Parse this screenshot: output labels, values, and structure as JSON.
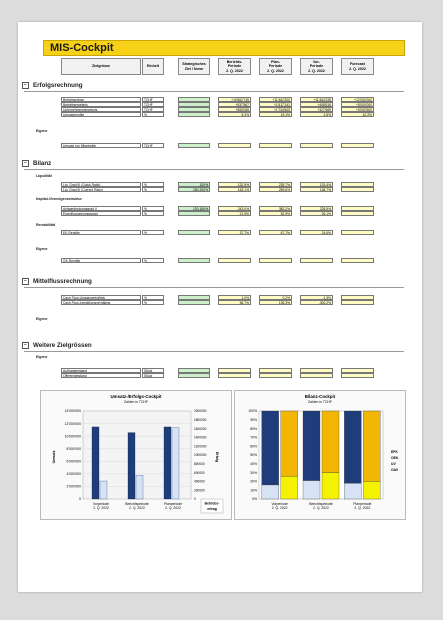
{
  "title": "MIS-Cockpit",
  "headers": {
    "kennzahl": "Zielgrösse",
    "einheit": "Einheit",
    "strategisch": [
      "Strategisches",
      "Ziel / Norm"
    ],
    "bericht": [
      "Berichts-",
      "Periode",
      "2. Q. 2022"
    ],
    "plan": [
      "Plan-",
      "Periode",
      "2. Q. 2022"
    ],
    "vor": [
      "Vor-",
      "Periode",
      "2. Q. 2022"
    ],
    "forecast": [
      "Forecast",
      "2. Q. 2022"
    ]
  },
  "sections": {
    "erfolg": "Erfolgsrechnung",
    "bilanz": "Bilanz",
    "mittel": "Mittelflussrechnung",
    "weitere": "Weitere Zielgrössen"
  },
  "subsections": {
    "eigene1": "Eigene",
    "liquiditaet": "Liquidität",
    "kapital": "Kapital-/Vermögensstruktur",
    "rentabilitaet": "Rentabilität",
    "eigene2": "Eigene",
    "eigene3": "Eigene",
    "eigene4": "Eigene"
  },
  "rows": {
    "erfolg": [
      {
        "label": "Betriebsertrag",
        "unit": "TCHF",
        "target": "",
        "bericht": "+10'562'745",
        "plan": "+11'462'200",
        "vor": "+11'464'228",
        "forecast": "+12'000'000"
      },
      {
        "label": "Betriebsergebnis",
        "unit": "TCHF",
        "target": "",
        "bericht": "+537'567",
        "plan": "+1'617'141",
        "vor": "+408'616",
        "forecast": "+5'000'000"
      },
      {
        "label": "Unternehmensergebnis",
        "unit": "TCHF",
        "target": "",
        "bericht": "+565'065",
        "plan": "+1'734'600",
        "vor": "+327'669",
        "forecast": "+5'000'500"
      },
      {
        "label": "Umsatzrendite",
        "unit": "%",
        "target": "",
        "bericht": "5.3%",
        "plan": "15.1%",
        "vor": "2.8%",
        "forecast": "42.2%"
      }
    ],
    "eigene1": [
      {
        "label": "Umsatz pro Mitarbeiter",
        "unit": "TCHF",
        "target": "",
        "bericht": "",
        "plan": "",
        "vor": "",
        "forecast": ""
      }
    ],
    "liquiditaet": [
      {
        "label": "Liq. Grad III (Quick Ratio)",
        "unit": "%",
        "target": "100%",
        "bericht": "132.9%",
        "plan": "235.7%",
        "vor": "133.4%",
        "forecast": ""
      },
      {
        "label": "Liq. Grad III (Current Ratio)",
        "unit": "%",
        "target": "150-200%",
        "bericht": "163.1%",
        "plan": "259.6%",
        "vor": "156.7%",
        "forecast": ""
      }
    ],
    "kapital": [
      {
        "label": "Anlagedeckungsgrad II",
        "unit": "%",
        "target": "120-160%",
        "bericht": "243.0%",
        "plan": "382.2%",
        "vor": "228.5%",
        "forecast": ""
      },
      {
        "label": "Eigenfinanzierungsgrad",
        "unit": "%",
        "target": "",
        "bericht": "21.9%",
        "plan": "52.9%",
        "vor": "26.1%",
        "forecast": ""
      }
    ],
    "rentabilitaet": [
      {
        "label": "EK-Rendite",
        "unit": "%",
        "target": "",
        "bericht": "37.7%",
        "plan": "67.7%",
        "vor": "24.6%",
        "forecast": ""
      }
    ],
    "eigene2": [
      {
        "label": "GK-Rendite",
        "unit": "%",
        "target": "",
        "bericht": "",
        "plan": "",
        "vor": "",
        "forecast": ""
      }
    ],
    "mittel": [
      {
        "label": "Cash Flow-Umsatzverhältnis",
        "unit": "%",
        "target": "",
        "bericht": "1.0%",
        "plan": "0.2%",
        "vor": "-1.3%",
        "forecast": ""
      },
      {
        "label": "Cash Flow-Investitionsverhältnis",
        "unit": "%",
        "target": "",
        "bericht": "56.7%",
        "plan": "135.3%",
        "vor": "-300.2%",
        "forecast": ""
      }
    ],
    "weitere": [
      {
        "label": "Auftragsbestand",
        "unit": "Stück",
        "target": "",
        "bericht": "",
        "plan": "",
        "vor": "",
        "forecast": ""
      },
      {
        "label": "Offertenbestand",
        "unit": "Stück",
        "target": "",
        "bericht": "",
        "plan": "",
        "vor": "",
        "forecast": ""
      }
    ]
  },
  "colors": {
    "accent": "#f7d117",
    "green": "#ccf0c9",
    "yellow": "#fefcc4",
    "navy": "#1f3d7a",
    "lightblue": "#d7e3f4"
  },
  "chart_data": [
    {
      "type": "bar",
      "title": "Umsatz-/Erfolgs-Cockpit",
      "subtitle": "Zahlen in TCHF",
      "ylabel": "Umsatz",
      "y2label": "Erfolg",
      "categories": [
        "Vorperiode\n2. Q. 2022",
        "Berichtsperiode\n2. Q. 2022",
        "Planperiode\n2. Q. 2022"
      ],
      "ylim": [
        0,
        14000000
      ],
      "y2lim": [
        0,
        2000000
      ],
      "yticks": [
        "0",
        "2'000'000",
        "4'000'000",
        "6'000'000",
        "8'000'000",
        "10'000'000",
        "12'000'000",
        "14'000'000"
      ],
      "y2ticks": [
        "0",
        "200000",
        "400000",
        "600000",
        "800000",
        "1000000",
        "1200000",
        "1400000",
        "1600000",
        "1800000",
        "2000000"
      ],
      "series": [
        {
          "name": "Betriebsertrag",
          "values": [
            11464228,
            10562745,
            11462200
          ],
          "color": "#1f3d7a"
        },
        {
          "name": "Betriebsergebnis",
          "values": [
            408616,
            537567,
            1617141
          ],
          "color": "#d7e3f4"
        }
      ],
      "right_labels": [
        "Betriebs-",
        "ertrag"
      ]
    },
    {
      "type": "bar",
      "title": "Bilanz-Cockpit",
      "subtitle": "Zahlen in TCHF",
      "categories": [
        "Vorperiode\n2. Q. 2022",
        "Berichtsperiode\n2. Q. 2022",
        "Planperiode\n2. Q. 2022"
      ],
      "ylim": [
        0,
        100
      ],
      "yticks": [
        "0%",
        "10%",
        "20%",
        "30%",
        "40%",
        "50%",
        "60%",
        "70%",
        "80%",
        "90%",
        "100%"
      ],
      "legend": [
        "EFK",
        "OEK",
        "UV",
        "OAV"
      ],
      "series": [
        {
          "name": "left_bottom",
          "values": [
            16,
            21,
            18
          ],
          "color": "#d7e3f4"
        },
        {
          "name": "left_top",
          "values": [
            84,
            79,
            82
          ],
          "color": "#1f3d7a"
        },
        {
          "name": "right_bottom",
          "values": [
            26,
            30,
            20
          ],
          "color": "#f4f200"
        },
        {
          "name": "right_top",
          "values": [
            74,
            70,
            80
          ],
          "color": "#f2b705"
        }
      ]
    }
  ]
}
